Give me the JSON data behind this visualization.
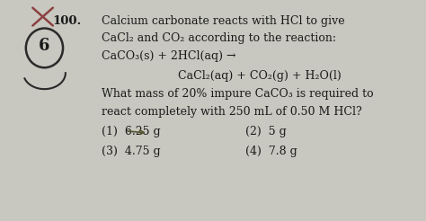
{
  "bg_color": "#c8c8c0",
  "text_color": "#1a1a1a",
  "font_size": 9.0,
  "question_number": "100.",
  "line1": "Calcium carbonate reacts with HCl to give",
  "line2": "CaCl₂ and CO₂ according to the reaction:",
  "line3": "CaCO₃(s) + 2HCl(aq) →",
  "line4": "CaCl₂(aq) + CO₂(g) + H₂O(l)",
  "line5": "What mass of 20% impure CaCO₃ is required to",
  "line6": "react completely with 250 mL of 0.50 M HCl?",
  "opt1": "(1)  6.25 g",
  "opt2": "(2)  5 g",
  "opt3": "(3)  4.75 g",
  "opt4": "(4)  7.8 g",
  "circle_label": "6",
  "x_color": "#8B4040",
  "circle_color": "#2a2a2a",
  "arrow_color": "#555533"
}
